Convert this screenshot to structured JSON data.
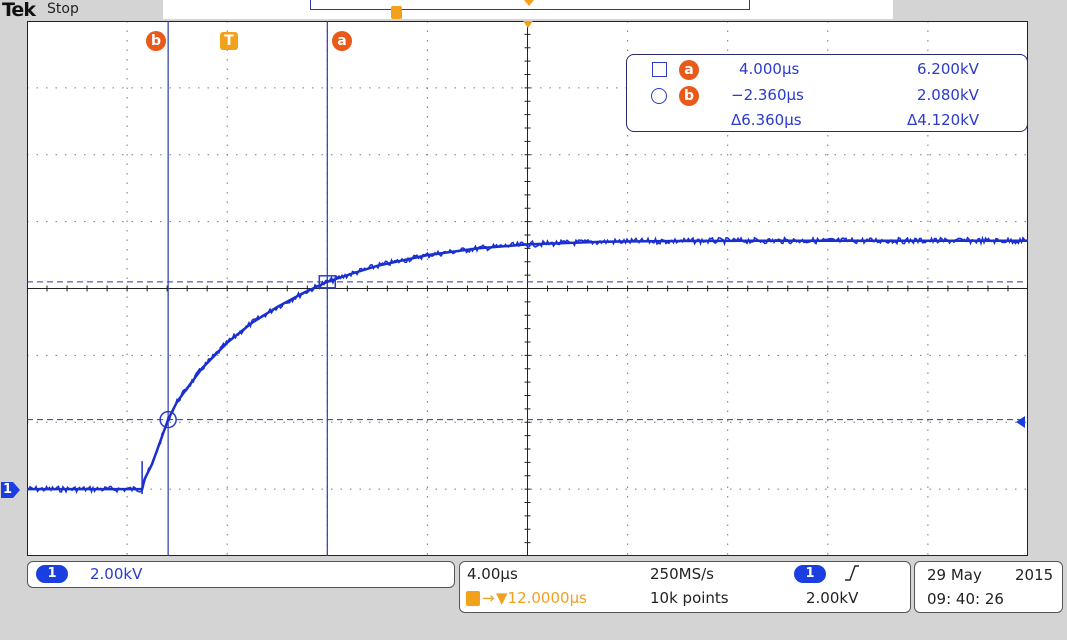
{
  "header": {
    "brand": "Tek",
    "run_state": "Stop"
  },
  "markers": {
    "cursor_b": "b",
    "trigger": "T",
    "cursor_a": "a",
    "ground_ref": "1"
  },
  "cursor_readout": {
    "row_a": {
      "marker": "a",
      "time": "4.000µs",
      "value": "6.200kV"
    },
    "row_b": {
      "marker": "b",
      "time": "−2.360µs",
      "value": "2.080kV"
    },
    "delta": {
      "time": "Δ6.360µs",
      "value": "Δ4.120kV"
    }
  },
  "channel_panel": {
    "channel": "1",
    "scale": "2.00kV"
  },
  "timebase_panel": {
    "time_per_div": "4.00µs",
    "trigger_position": "▼12.0000µs",
    "sample_rate": "250MS/s",
    "record_length": "10k points",
    "trigger_channel": "1",
    "trigger_slope_icon": "rising-edge-icon",
    "trigger_level": "2.00kV"
  },
  "datetime_panel": {
    "date_day": "29 May",
    "date_year": "2015",
    "time": "09: 40: 26"
  },
  "chart_data": {
    "type": "line",
    "x_per_div": "4.00µs",
    "y_per_div": "2.00kV",
    "x_range_us": [
      -8,
      32
    ],
    "y_range_kV": [
      -2,
      14
    ],
    "trigger_time_us": 0,
    "series": [
      {
        "x": [
          -8,
          -7,
          -6,
          -5,
          -4,
          -3.4,
          -3.3,
          -3,
          -2.36,
          -2,
          -1,
          0,
          1,
          2,
          3,
          4,
          5,
          6,
          8,
          10,
          12,
          15,
          18,
          21,
          24,
          28,
          32
        ],
        "y": [
          0,
          0,
          0,
          0,
          0,
          0,
          0.3,
          0.75,
          2.08,
          2.62,
          3.62,
          4.38,
          4.98,
          5.45,
          5.85,
          6.2,
          6.45,
          6.68,
          7.0,
          7.2,
          7.32,
          7.4,
          7.42,
          7.43,
          7.43,
          7.43,
          7.43
        ]
      }
    ],
    "color": "#1a2fd0"
  }
}
